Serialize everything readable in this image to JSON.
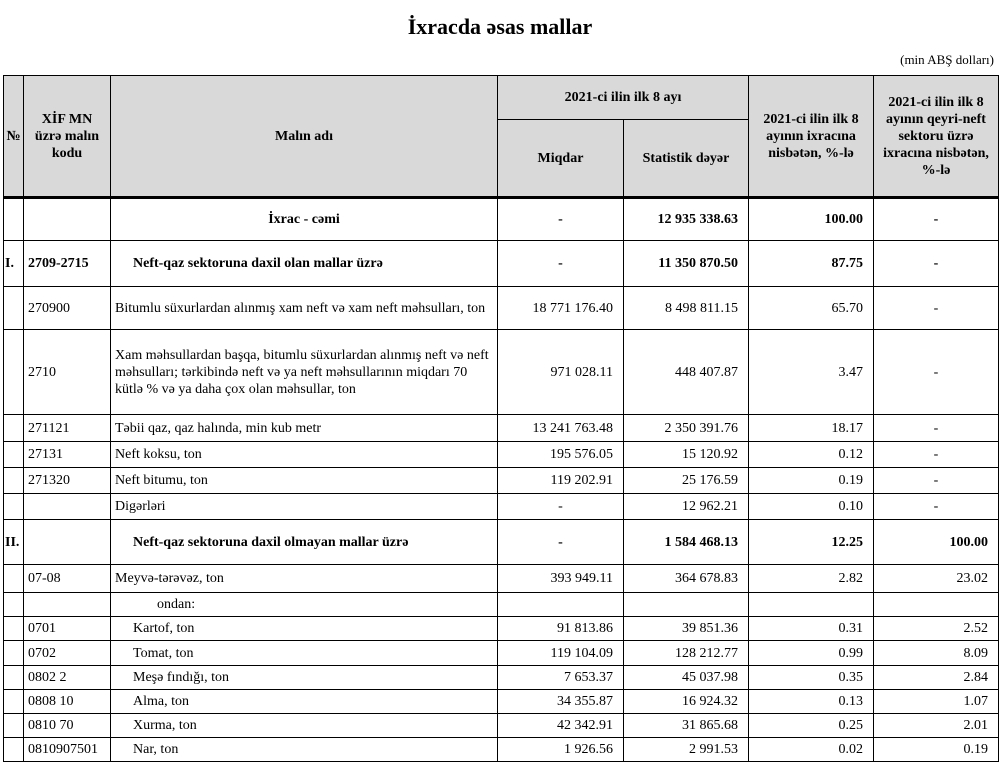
{
  "title": "İxracda əsas mallar",
  "unit": "(min ABŞ dolları)",
  "headers": {
    "no": "№",
    "code": "XİF MN üzrə malın kodu",
    "name": "Malın adı",
    "period": "2021-ci ilin ilk 8 ayı",
    "quantity": "Miqdar",
    "value": "Statistik dəyər",
    "share_total": "2021-ci ilin ilk 8 ayının ixracına nisbətən, %-lə",
    "share_nonoil": "2021-ci ilin ilk 8 ayının qeyri-neft sektoru üzrə ixracına nisbətən, %-lə"
  },
  "rows": [
    {
      "no": "",
      "code": "",
      "name": "İxrac - cəmi",
      "qty": "-",
      "value": "12 935 338.63",
      "share": "100.00",
      "nonoil": "-",
      "style": "total",
      "h": 43
    },
    {
      "no": "I.",
      "code": "2709-2715",
      "name": "Neft-qaz sektoruna daxil olan mallar üzrə",
      "qty": "-",
      "value": "11 350 870.50",
      "share": "87.75",
      "nonoil": "-",
      "style": "section",
      "h": 46
    },
    {
      "no": "",
      "code": "270900",
      "name": "Bitumlu süxurlardan alınmış xam neft və xam neft məhsulları, ton",
      "qty": "18 771 176.40",
      "value": "8 498 811.15",
      "share": "65.70",
      "nonoil": "-",
      "style": "",
      "h": 43
    },
    {
      "no": "",
      "code": "2710",
      "name": "Xam məhsullardan başqa, bitumlu süxurlardan alınmış neft və neft məhsulları; tərkibində neft və ya neft məhsullarının miqdarı 70 kütlə % və ya daha çox olan məhsullar, ton",
      "qty": "971 028.11",
      "value": "448 407.87",
      "share": "3.47",
      "nonoil": "-",
      "style": "",
      "h": 85
    },
    {
      "no": "",
      "code": "271121",
      "name": "Təbii qaz, qaz halında, min kub metr",
      "qty": "13 241 763.48",
      "value": "2 350 391.76",
      "share": "18.17",
      "nonoil": "-",
      "style": "",
      "h": 27
    },
    {
      "no": "",
      "code": "27131",
      "name": "Neft koksu, ton",
      "qty": "195 576.05",
      "value": "15 120.92",
      "share": "0.12",
      "nonoil": "-",
      "style": "",
      "h": 26
    },
    {
      "no": "",
      "code": "271320",
      "name": "Neft bitumu, ton",
      "qty": "119 202.91",
      "value": "25 176.59",
      "share": "0.19",
      "nonoil": "-",
      "style": "",
      "h": 26
    },
    {
      "no": "",
      "code": "",
      "name": "Digərləri",
      "qty": "-",
      "value": "12 962.21",
      "share": "0.10",
      "nonoil": "-",
      "style": "",
      "h": 26
    },
    {
      "no": "II.",
      "code": "",
      "name": "Neft-qaz sektoruna daxil olmayan mallar üzrə",
      "qty": "-",
      "value": "1 584 468.13",
      "share": "12.25",
      "nonoil": "100.00",
      "style": "section",
      "h": 45
    },
    {
      "no": "",
      "code": "07-08",
      "name": "Meyvə-tərəvəz, ton",
      "qty": "393 949.11",
      "value": "364 678.83",
      "share": "2.82",
      "nonoil": "23.02",
      "style": "",
      "h": 28
    },
    {
      "no": "",
      "code": "",
      "name": "ondan:",
      "qty": "",
      "value": "",
      "share": "",
      "nonoil": "",
      "style": "sub",
      "h": 24
    },
    {
      "no": "",
      "code": "0701",
      "name": "Kartof, ton",
      "qty": "91 813.86",
      "value": "39 851.36",
      "share": "0.31",
      "nonoil": "2.52",
      "style": "child",
      "h": 24
    },
    {
      "no": "",
      "code": "0702",
      "name": "Tomat, ton",
      "qty": "119 104.09",
      "value": "128 212.77",
      "share": "0.99",
      "nonoil": "8.09",
      "style": "child",
      "h": 25
    },
    {
      "no": "",
      "code": "0802 2",
      "name": "Meşə fındığı, ton",
      "qty": "7 653.37",
      "value": "45 037.98",
      "share": "0.35",
      "nonoil": "2.84",
      "style": "child",
      "h": 24
    },
    {
      "no": "",
      "code": "0808 10",
      "name": "Alma, ton",
      "qty": "34 355.87",
      "value": "16 924.32",
      "share": "0.13",
      "nonoil": "1.07",
      "style": "child",
      "h": 24
    },
    {
      "no": "",
      "code": "0810 70",
      "name": "Xurma, ton",
      "qty": "42 342.91",
      "value": "31 865.68",
      "share": "0.25",
      "nonoil": "2.01",
      "style": "child",
      "h": 24
    },
    {
      "no": "",
      "code": "0810907501",
      "name": "Nar, ton",
      "qty": "1 926.56",
      "value": "2 991.53",
      "share": "0.02",
      "nonoil": "0.19",
      "style": "child",
      "h": 24
    }
  ]
}
